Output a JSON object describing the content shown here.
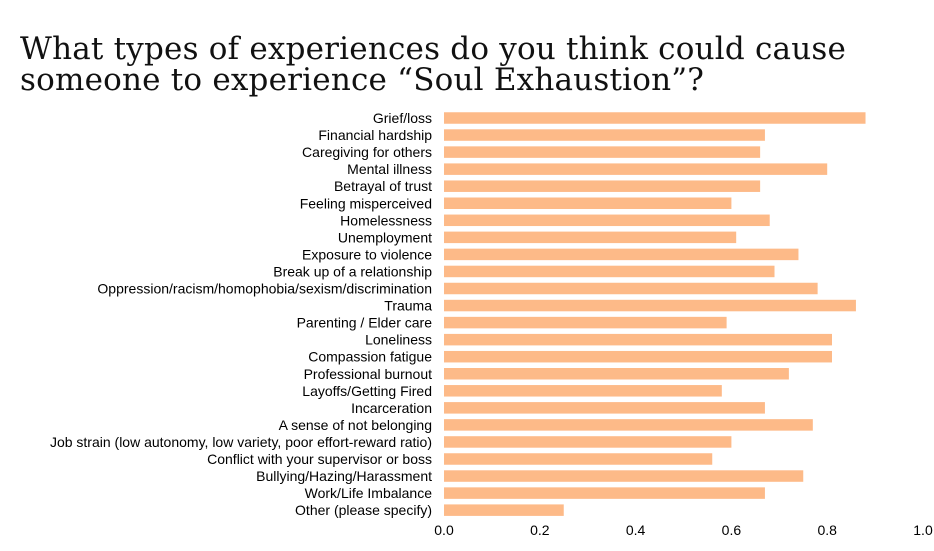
{
  "title_lines": [
    "What types of experiences do you think could cause",
    "someone to experience “Soul Exhaustion”?"
  ],
  "chart_data": {
    "type": "bar",
    "orientation": "horizontal",
    "title": "What types of experiences do you think could cause someone to experience “Soul Exhaustion”?",
    "categories": [
      "Grief/loss",
      "Financial hardship",
      "Caregiving for others",
      "Mental illness",
      "Betrayal of trust",
      "Feeling misperceived",
      "Homelessness",
      "Unemployment",
      "Exposure to violence",
      "Break up of a relationship",
      "Oppression/racism/homophobia/sexism/discrimination",
      "Trauma",
      "Parenting / Elder care",
      "Loneliness",
      "Compassion fatigue",
      "Professional burnout",
      "Layoffs/Getting Fired",
      "Incarceration",
      "A sense of not belonging",
      "Job strain (low autonomy, low variety, poor effort-reward ratio)",
      "Conflict with your supervisor or boss",
      "Bullying/Hazing/Harassment",
      "Work/Life Imbalance",
      "Other (please specify)"
    ],
    "values": [
      0.88,
      0.67,
      0.66,
      0.8,
      0.66,
      0.6,
      0.68,
      0.61,
      0.74,
      0.69,
      0.78,
      0.86,
      0.59,
      0.81,
      0.81,
      0.72,
      0.58,
      0.67,
      0.77,
      0.6,
      0.56,
      0.75,
      0.67,
      0.25
    ],
    "xlim": [
      0,
      1
    ],
    "xticks": [
      "0.0",
      "0.2",
      "0.4",
      "0.6",
      "0.8",
      "1.0"
    ],
    "bar_color": "#FDBA88",
    "grid": false,
    "legend": "none"
  }
}
